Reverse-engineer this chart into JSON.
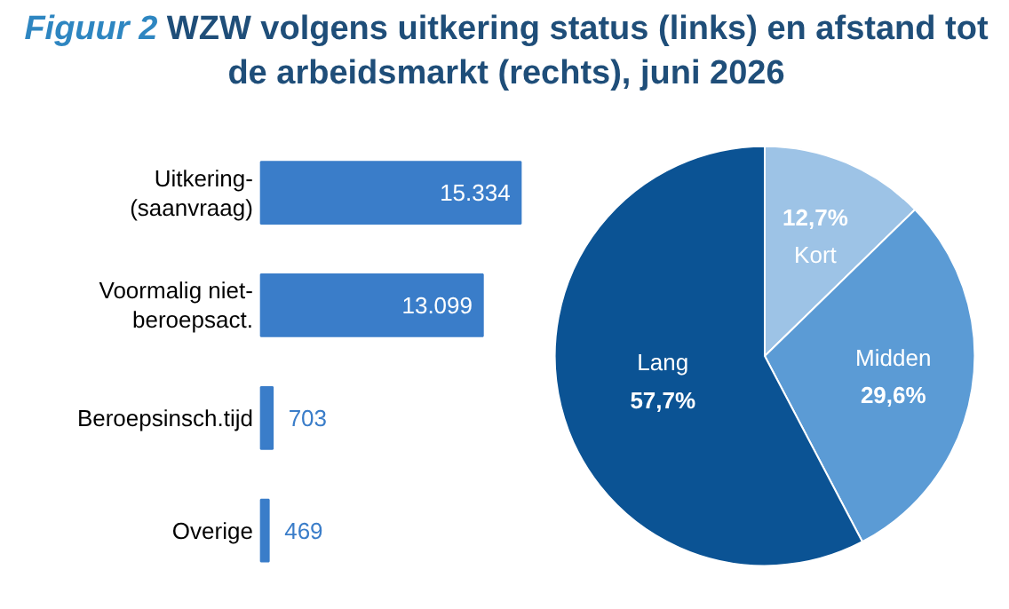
{
  "chart_data": [
    {
      "type": "bar",
      "orientation": "horizontal",
      "title": "Figuur 2 WZW volgens uitkering status (links) en afstand tot de arbeidsmarkt (rechts), juni 2026",
      "categories": [
        "Uitkering-\n(saanvraag)",
        "Voormalig niet-\nberoepsact.",
        "Beroepsinsch.tijd",
        "Overige"
      ],
      "values": [
        15334,
        13099,
        703,
        469
      ],
      "value_labels": [
        "15.334",
        "13.099",
        "703",
        "469"
      ],
      "color": "#3a7dc9"
    },
    {
      "type": "pie",
      "categories": [
        "Kort",
        "Midden",
        "Lang"
      ],
      "values": [
        12.7,
        29.6,
        57.7
      ],
      "value_labels": [
        "12,7%",
        "29,6%",
        "57,7%"
      ],
      "colors": [
        "#9dc3e6",
        "#5b9bd5",
        "#0b5394"
      ]
    }
  ]
}
